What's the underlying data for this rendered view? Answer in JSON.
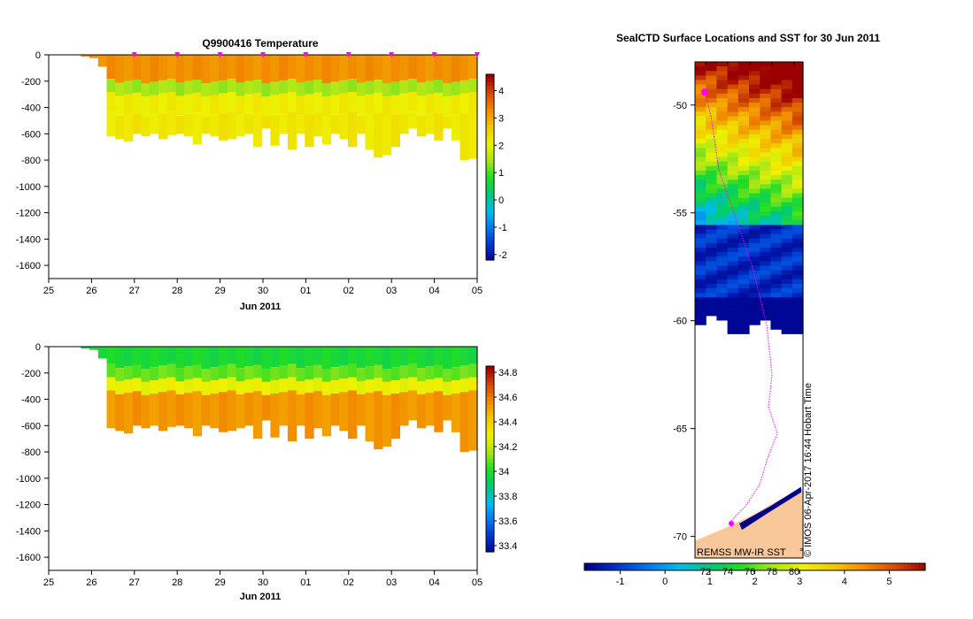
{
  "chart_data": [
    {
      "type": "heatmap",
      "title": "Q9900416  Temperature",
      "xlabel": "Jun 2011",
      "x_ticks": [
        "25",
        "26",
        "27",
        "28",
        "29",
        "30",
        "01",
        "02",
        "03",
        "04",
        "05"
      ],
      "y_ticks": [
        "0",
        "-200",
        "-400",
        "-600",
        "-800",
        "-1000",
        "-1200",
        "-1400",
        "-1600"
      ],
      "ylim": [
        -1700,
        0
      ],
      "colorbar_ticks": [
        "4",
        "3",
        "2",
        "1",
        "0",
        "-1",
        "-2"
      ],
      "colorbar_range": [
        -2.2,
        4.6
      ],
      "profile_max_depth_m": [
        -15,
        -25,
        -90,
        -620,
        -640,
        -660,
        -600,
        -620,
        -600,
        -640,
        -610,
        -600,
        -620,
        -680,
        -600,
        -620,
        -650,
        -640,
        -620,
        -600,
        -700,
        -560,
        -690,
        -600,
        -720,
        -600,
        -700,
        -620,
        -680,
        -600,
        -640,
        -700,
        -600,
        -720,
        -780,
        -760,
        -700,
        -600,
        -560,
        -620,
        -600,
        -650,
        -560,
        -650,
        -800,
        -790
      ],
      "layers": [
        {
          "top": 0,
          "bottom": -200,
          "value": 3.3
        },
        {
          "top": -200,
          "bottom": -300,
          "value": 1.5
        },
        {
          "top": -300,
          "bottom": -450,
          "value": 2.2
        },
        {
          "top": -450,
          "bottom": -820,
          "value": 2.3
        }
      ],
      "profile_times": [
        "27",
        "28",
        "29",
        "30",
        "01",
        "02",
        "03",
        "04",
        "05"
      ]
    },
    {
      "type": "heatmap",
      "title": "",
      "xlabel": "Jun 2011",
      "x_ticks": [
        "25",
        "26",
        "27",
        "28",
        "29",
        "30",
        "01",
        "02",
        "03",
        "04",
        "05"
      ],
      "y_ticks": [
        "0",
        "-200",
        "-400",
        "-600",
        "-800",
        "-1000",
        "-1200",
        "-1400",
        "-1600"
      ],
      "ylim": [
        -1700,
        0
      ],
      "colorbar_ticks": [
        "34.8",
        "34.6",
        "34.4",
        "34.2",
        "34",
        "33.8",
        "33.6",
        "33.4"
      ],
      "colorbar_range": [
        33.35,
        34.85
      ],
      "layers": [
        {
          "top": 0,
          "bottom": -150,
          "value": 34.0
        },
        {
          "top": -150,
          "bottom": -250,
          "value": 34.1
        },
        {
          "top": -250,
          "bottom": -350,
          "value": 34.3
        },
        {
          "top": -350,
          "bottom": -820,
          "value": 34.55
        }
      ]
    },
    {
      "type": "heatmap",
      "title": "SealCTD Surface Locations and SST for 30 Jun 2011",
      "y_ticks": [
        "-50",
        "-55",
        "-60",
        "-65",
        "-70"
      ],
      "ylim": [
        -71,
        -48
      ],
      "colorbar_ticks": [
        "-1",
        "0",
        "1",
        "2",
        "3",
        "4",
        "5"
      ],
      "colorbar_range": [
        -1.8,
        5.8
      ],
      "inner_ticks": [
        "72",
        "74",
        "76",
        "78",
        "80"
      ],
      "source_label": "REMSS MW-IR SST",
      "watermark": "© IMOS 06-Apr-2017 16:44 Hobart Time"
    }
  ],
  "colors": {
    "colormap": [
      "#00008b",
      "#0033cc",
      "#0077ee",
      "#00bbee",
      "#00c87a",
      "#22dd22",
      "#a8e61a",
      "#eef200",
      "#f2c800",
      "#f28a00",
      "#d24a00",
      "#9b0000"
    ],
    "land": "#f8c89a",
    "track": "#ff00ff"
  }
}
